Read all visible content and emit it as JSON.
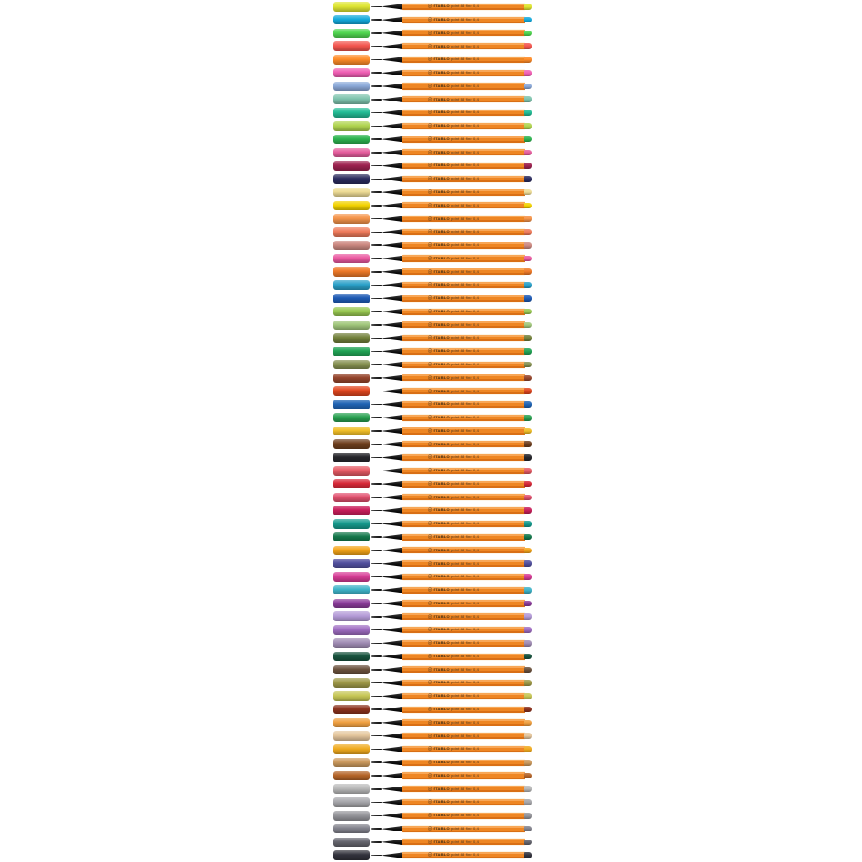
{
  "product": {
    "barrel_text": {
      "logo": "ⓢ",
      "brand": "STABILO",
      "model": "point 88",
      "size": "fine 0,4"
    },
    "barrel_color": "#ee8623",
    "tip_color": "#111111",
    "background_color": "#ffffff"
  },
  "pens": [
    {
      "name": "neon-yellow",
      "color": "#dfe632"
    },
    {
      "name": "neon-blue",
      "color": "#14aadc"
    },
    {
      "name": "neon-green",
      "color": "#50d750"
    },
    {
      "name": "neon-red",
      "color": "#f3554e"
    },
    {
      "name": "neon-orange",
      "color": "#ff8c28"
    },
    {
      "name": "neon-pink",
      "color": "#f05fb4"
    },
    {
      "name": "light-blue",
      "color": "#8caad9"
    },
    {
      "name": "light-teal",
      "color": "#7fc4ae"
    },
    {
      "name": "turquoise",
      "color": "#23bd96"
    },
    {
      "name": "light-yellow-green",
      "color": "#b0d44f"
    },
    {
      "name": "green",
      "color": "#2eb450"
    },
    {
      "name": "pink",
      "color": "#e55d9d"
    },
    {
      "name": "dark-red",
      "color": "#9e2350"
    },
    {
      "name": "dark-blue",
      "color": "#2b2b5e"
    },
    {
      "name": "cream",
      "color": "#eedc96"
    },
    {
      "name": "yellow",
      "color": "#f2d200"
    },
    {
      "name": "apricot",
      "color": "#f5954b"
    },
    {
      "name": "salmon",
      "color": "#ee7a5a"
    },
    {
      "name": "dusty-rose",
      "color": "#cd8a82"
    },
    {
      "name": "rose-pink",
      "color": "#ea58a0"
    },
    {
      "name": "orange",
      "color": "#ef7a28"
    },
    {
      "name": "azure",
      "color": "#2aa0c8"
    },
    {
      "name": "blue",
      "color": "#1e5ab4"
    },
    {
      "name": "light-green",
      "color": "#97c750"
    },
    {
      "name": "sage-green",
      "color": "#a2c87d"
    },
    {
      "name": "olive",
      "color": "#72803a"
    },
    {
      "name": "grass-green",
      "color": "#21a355"
    },
    {
      "name": "khaki",
      "color": "#859050"
    },
    {
      "name": "sienna",
      "color": "#96462d"
    },
    {
      "name": "vermillion",
      "color": "#e1461e"
    },
    {
      "name": "medium-blue",
      "color": "#2064b4"
    },
    {
      "name": "emerald",
      "color": "#28a050"
    },
    {
      "name": "golden-yellow",
      "color": "#f0be28"
    },
    {
      "name": "brown",
      "color": "#6f3f1e"
    },
    {
      "name": "black",
      "color": "#26262b"
    },
    {
      "name": "light-red",
      "color": "#e65a64"
    },
    {
      "name": "red",
      "color": "#d72837"
    },
    {
      "name": "coral-red",
      "color": "#e1506e"
    },
    {
      "name": "dark-pink",
      "color": "#c81e5a"
    },
    {
      "name": "teal",
      "color": "#169b8e"
    },
    {
      "name": "pine-green",
      "color": "#14784b"
    },
    {
      "name": "golden-orange",
      "color": "#f5a519"
    },
    {
      "name": "violet-blue",
      "color": "#52509e"
    },
    {
      "name": "magenta",
      "color": "#d73c96"
    },
    {
      "name": "cyan",
      "color": "#3eb3c8"
    },
    {
      "name": "purple",
      "color": "#8c3c9b"
    },
    {
      "name": "lavender",
      "color": "#b49bd7"
    },
    {
      "name": "lilac",
      "color": "#a06ec3"
    },
    {
      "name": "mauve",
      "color": "#a08cb4"
    },
    {
      "name": "dark-pine",
      "color": "#19543f"
    },
    {
      "name": "umber",
      "color": "#69503c"
    },
    {
      "name": "dark-khaki",
      "color": "#a09a48"
    },
    {
      "name": "light-olive",
      "color": "#c6c655"
    },
    {
      "name": "brick",
      "color": "#8c321e"
    },
    {
      "name": "light-orange",
      "color": "#f0a041"
    },
    {
      "name": "beige",
      "color": "#e5c79e"
    },
    {
      "name": "amber",
      "color": "#f0aa1e"
    },
    {
      "name": "sand",
      "color": "#cd9b5f"
    },
    {
      "name": "caramel",
      "color": "#b46428"
    },
    {
      "name": "light-gray",
      "color": "#bababa"
    },
    {
      "name": "silver-gray",
      "color": "#a6a6aa"
    },
    {
      "name": "medium-gray",
      "color": "#96969b"
    },
    {
      "name": "gray",
      "color": "#82828c"
    },
    {
      "name": "dark-gray",
      "color": "#65656e"
    },
    {
      "name": "blue-black",
      "color": "#32323c"
    }
  ]
}
